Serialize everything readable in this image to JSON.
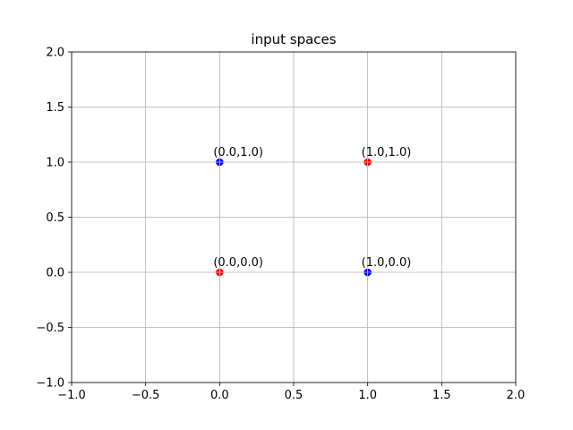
{
  "chart_data": {
    "type": "scatter",
    "title": "input spaces",
    "xlabel": "",
    "ylabel": "",
    "xlim": [
      -1.0,
      2.0
    ],
    "ylim": [
      -1.0,
      2.0
    ],
    "xticks": [
      -1.0,
      -0.5,
      0.0,
      0.5,
      1.0,
      1.5,
      2.0
    ],
    "yticks": [
      -1.0,
      -0.5,
      0.0,
      0.5,
      1.0,
      1.5,
      2.0
    ],
    "xtick_labels": [
      "−1.0",
      "−0.5",
      "0.0",
      "0.5",
      "1.0",
      "1.5",
      "2.0"
    ],
    "ytick_labels": [
      "−1.0",
      "−0.5",
      "0.0",
      "0.5",
      "1.0",
      "1.5",
      "2.0"
    ],
    "grid": true,
    "points": [
      {
        "x": 0.0,
        "y": 0.0,
        "color": "#ff0000",
        "label": "(0.0,0.0)"
      },
      {
        "x": 0.0,
        "y": 1.0,
        "color": "#0000ff",
        "label": "(0.0,1.0)"
      },
      {
        "x": 1.0,
        "y": 0.0,
        "color": "#0000ff",
        "label": "(1.0,0.0)"
      },
      {
        "x": 1.0,
        "y": 1.0,
        "color": "#ff0000",
        "label": "(1.0,1.0)"
      }
    ]
  }
}
